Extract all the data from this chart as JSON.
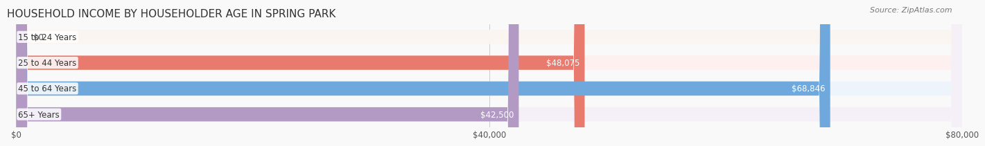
{
  "title": "HOUSEHOLD INCOME BY HOUSEHOLDER AGE IN SPRING PARK",
  "source": "Source: ZipAtlas.com",
  "categories": [
    "15 to 24 Years",
    "25 to 44 Years",
    "45 to 64 Years",
    "65+ Years"
  ],
  "values": [
    0,
    48075,
    68846,
    42500
  ],
  "bar_colors": [
    "#f5c89a",
    "#e87b6e",
    "#6fa8dc",
    "#b39ac4"
  ],
  "bg_colors": [
    "#faf5f0",
    "#fdf0ef",
    "#eef4fb",
    "#f5f0f8"
  ],
  "max_value": 80000,
  "xticks": [
    0,
    40000,
    80000
  ],
  "xtick_labels": [
    "$0",
    "$40,000",
    "$80,000"
  ],
  "bar_height": 0.55,
  "title_fontsize": 11,
  "label_fontsize": 8.5,
  "value_fontsize": 8.5,
  "tick_fontsize": 8.5,
  "source_fontsize": 8
}
